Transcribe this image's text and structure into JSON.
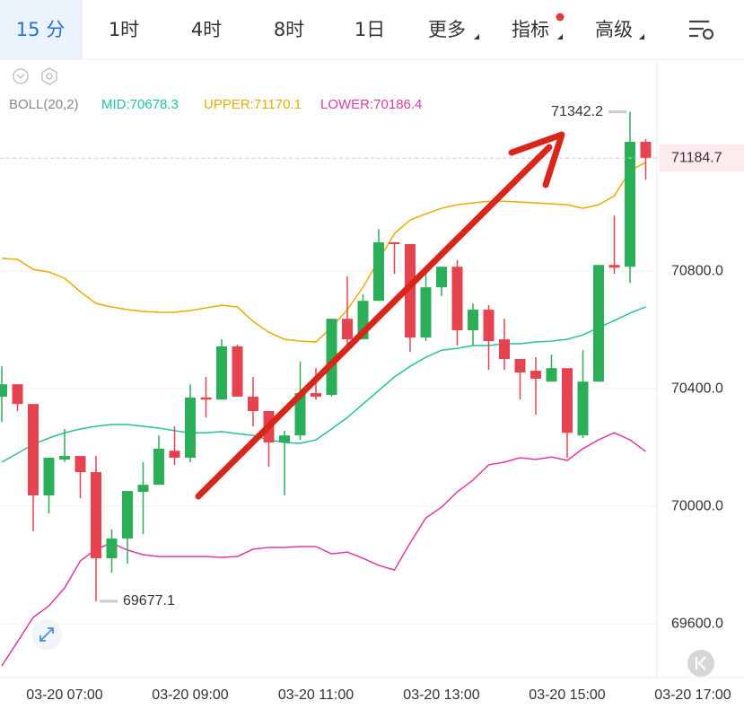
{
  "toolbar": {
    "tabs": [
      "15 分",
      "1时",
      "4时",
      "8时",
      "1日",
      "更多",
      "指标",
      "高级"
    ]
  },
  "chart_data": {
    "type": "candlestick",
    "indicator": "BOLL(20,2)",
    "categories": [
      null,
      null,
      null,
      null,
      "03-20 07:00",
      null,
      null,
      null,
      null,
      null,
      null,
      null,
      "03-20 09:00",
      null,
      null,
      null,
      null,
      null,
      null,
      null,
      "03-20 11:00",
      null,
      null,
      null,
      null,
      null,
      null,
      null,
      "03-20 13:00",
      null,
      null,
      null,
      null,
      null,
      null,
      null,
      "03-20 15:00",
      null,
      null,
      null,
      null,
      null,
      null,
      null,
      "03-20 17:00"
    ],
    "open": [
      70373,
      70415,
      70348,
      70037,
      70159,
      70171,
      70116,
      69823,
      69890,
      70049,
      70073,
      70189,
      70165,
      70370,
      70363,
      70544,
      70373,
      70324,
      70217,
      70241,
      70385,
      70379,
      70638,
      70568,
      70699,
      70898,
      70892,
      70574,
      70745,
      70815,
      70599,
      70669,
      70568,
      70501,
      70461,
      70424,
      70470,
      70241,
      70424,
      70821,
      70815,
      71240,
      null,
      null,
      null
    ],
    "high": [
      70476,
      70415,
      70348,
      70165,
      70263,
      70171,
      70171,
      69921,
      70052,
      70150,
      70241,
      70272,
      70415,
      70440,
      70568,
      70550,
      70440,
      70324,
      70257,
      70492,
      70470,
      70638,
      70782,
      70721,
      70943,
      70898,
      70892,
      70806,
      70815,
      70837,
      70690,
      70684,
      70638,
      70501,
      70507,
      70516,
      70470,
      70531,
      70821,
      70989,
      71342.2,
      71249,
      null,
      null,
      null
    ],
    "low": [
      70287,
      70324,
      69915,
      69976,
      70150,
      70028,
      69677.1,
      69774,
      69805,
      69905,
      70073,
      70141,
      70150,
      70302,
      70363,
      70373,
      70272,
      70134,
      70037,
      70226,
      70363,
      70373,
      70547,
      70568,
      70699,
      70791,
      70525,
      70562,
      70715,
      70547,
      70547,
      70464,
      70464,
      70363,
      70312,
      70424,
      70165,
      70232,
      70424,
      70791,
      70760,
      71111,
      null,
      null,
      null
    ],
    "close": [
      70415,
      70348,
      70037,
      70165,
      70171,
      70116,
      69823,
      69890,
      70052,
      70073,
      70196,
      70165,
      70370,
      70363,
      70544,
      70373,
      70324,
      70217,
      70241,
      70385,
      70373,
      70638,
      70568,
      70699,
      70898,
      70892,
      70574,
      70745,
      70815,
      70599,
      70669,
      70562,
      70501,
      70455,
      70434,
      70470,
      70250,
      70424,
      70821,
      70812,
      71240,
      71184.7,
      null,
      null,
      null
    ],
    "up_color": "#2bae57",
    "down_color": "#e5434f",
    "series": [
      {
        "name": "MID:70678.3",
        "color": "#22c1a0",
        "values": [
          70150,
          70180,
          70211,
          70232,
          70250,
          70263,
          70272,
          70278,
          70278,
          70272,
          70266,
          70257,
          70250,
          70250,
          70254,
          70247,
          70241,
          70226,
          70217,
          70214,
          70226,
          70263,
          70302,
          70348,
          70394,
          70440,
          70476,
          70507,
          70531,
          70537,
          70547,
          70547,
          70553,
          70553,
          70559,
          70562,
          70568,
          70583,
          70608,
          70632,
          70657,
          70678.3,
          null,
          null,
          null
        ]
      },
      {
        "name": "UPPER:71170.1",
        "color": "#e6ad00",
        "values": [
          70843,
          70840,
          70806,
          70797,
          70776,
          70730,
          70690,
          70678,
          70669,
          70663,
          70660,
          70660,
          70666,
          70675,
          70684,
          70678,
          70629,
          70592,
          70568,
          70562,
          70559,
          70608,
          70669,
          70745,
          70837,
          70928,
          70974,
          70995,
          71014,
          71026,
          71032,
          71038,
          71038,
          71035,
          71032,
          71029,
          71026,
          71014,
          71026,
          71056,
          71142,
          71170.1,
          null,
          null,
          null
        ]
      },
      {
        "name": "LOWER:70186.4",
        "color": "#dd3aa0",
        "values": [
          69457,
          69539,
          69622,
          69661,
          69722,
          69814,
          69854,
          69875,
          69851,
          69835,
          69829,
          69829,
          69829,
          69829,
          69826,
          69829,
          69854,
          69860,
          69860,
          69863,
          69863,
          69838,
          69844,
          69823,
          69799,
          69783,
          69875,
          69960,
          69997,
          70049,
          70089,
          70141,
          70150,
          70165,
          70159,
          70168,
          70156,
          70196,
          70226,
          70250,
          70226,
          70186.4,
          null,
          null,
          null
        ]
      }
    ],
    "ylim": [
      69417,
      71515
    ],
    "yticks": [
      {
        "value": 69600,
        "label": "69600.0"
      },
      {
        "value": 70000,
        "label": "70000.0"
      },
      {
        "value": 70400,
        "label": "70400.0"
      },
      {
        "value": 70800,
        "label": "70800.0"
      }
    ],
    "grid": true
  }
}
